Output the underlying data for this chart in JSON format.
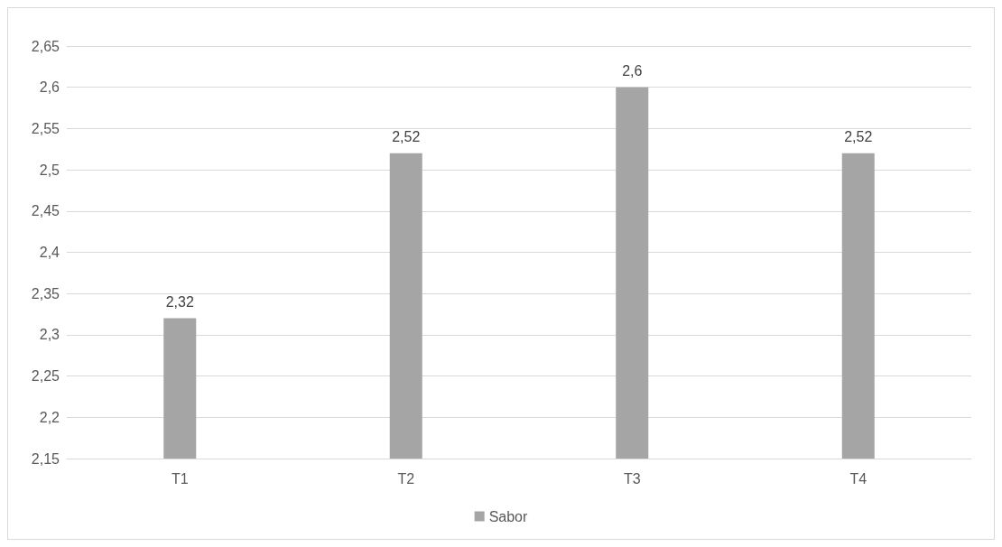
{
  "chart_data": {
    "type": "bar",
    "categories": [
      "T1",
      "T2",
      "T3",
      "T4"
    ],
    "series": [
      {
        "name": "Sabor",
        "color": "#a5a5a5",
        "values": [
          2.32,
          2.52,
          2.6,
          2.52
        ],
        "value_labels": [
          "2,32",
          "2,52",
          "2,6",
          "2,52"
        ]
      }
    ],
    "ylim": [
      2.15,
      2.65
    ],
    "yticks": [
      {
        "value": 2.15,
        "label": "2,15"
      },
      {
        "value": 2.2,
        "label": "2,2"
      },
      {
        "value": 2.25,
        "label": "2,25"
      },
      {
        "value": 2.3,
        "label": "2,3"
      },
      {
        "value": 2.35,
        "label": "2,35"
      },
      {
        "value": 2.4,
        "label": "2,4"
      },
      {
        "value": 2.45,
        "label": "2,45"
      },
      {
        "value": 2.5,
        "label": "2,5"
      },
      {
        "value": 2.55,
        "label": "2,55"
      },
      {
        "value": 2.6,
        "label": "2,6"
      },
      {
        "value": 2.65,
        "label": "2,65"
      }
    ],
    "grid": "y",
    "legend": "bottom"
  }
}
